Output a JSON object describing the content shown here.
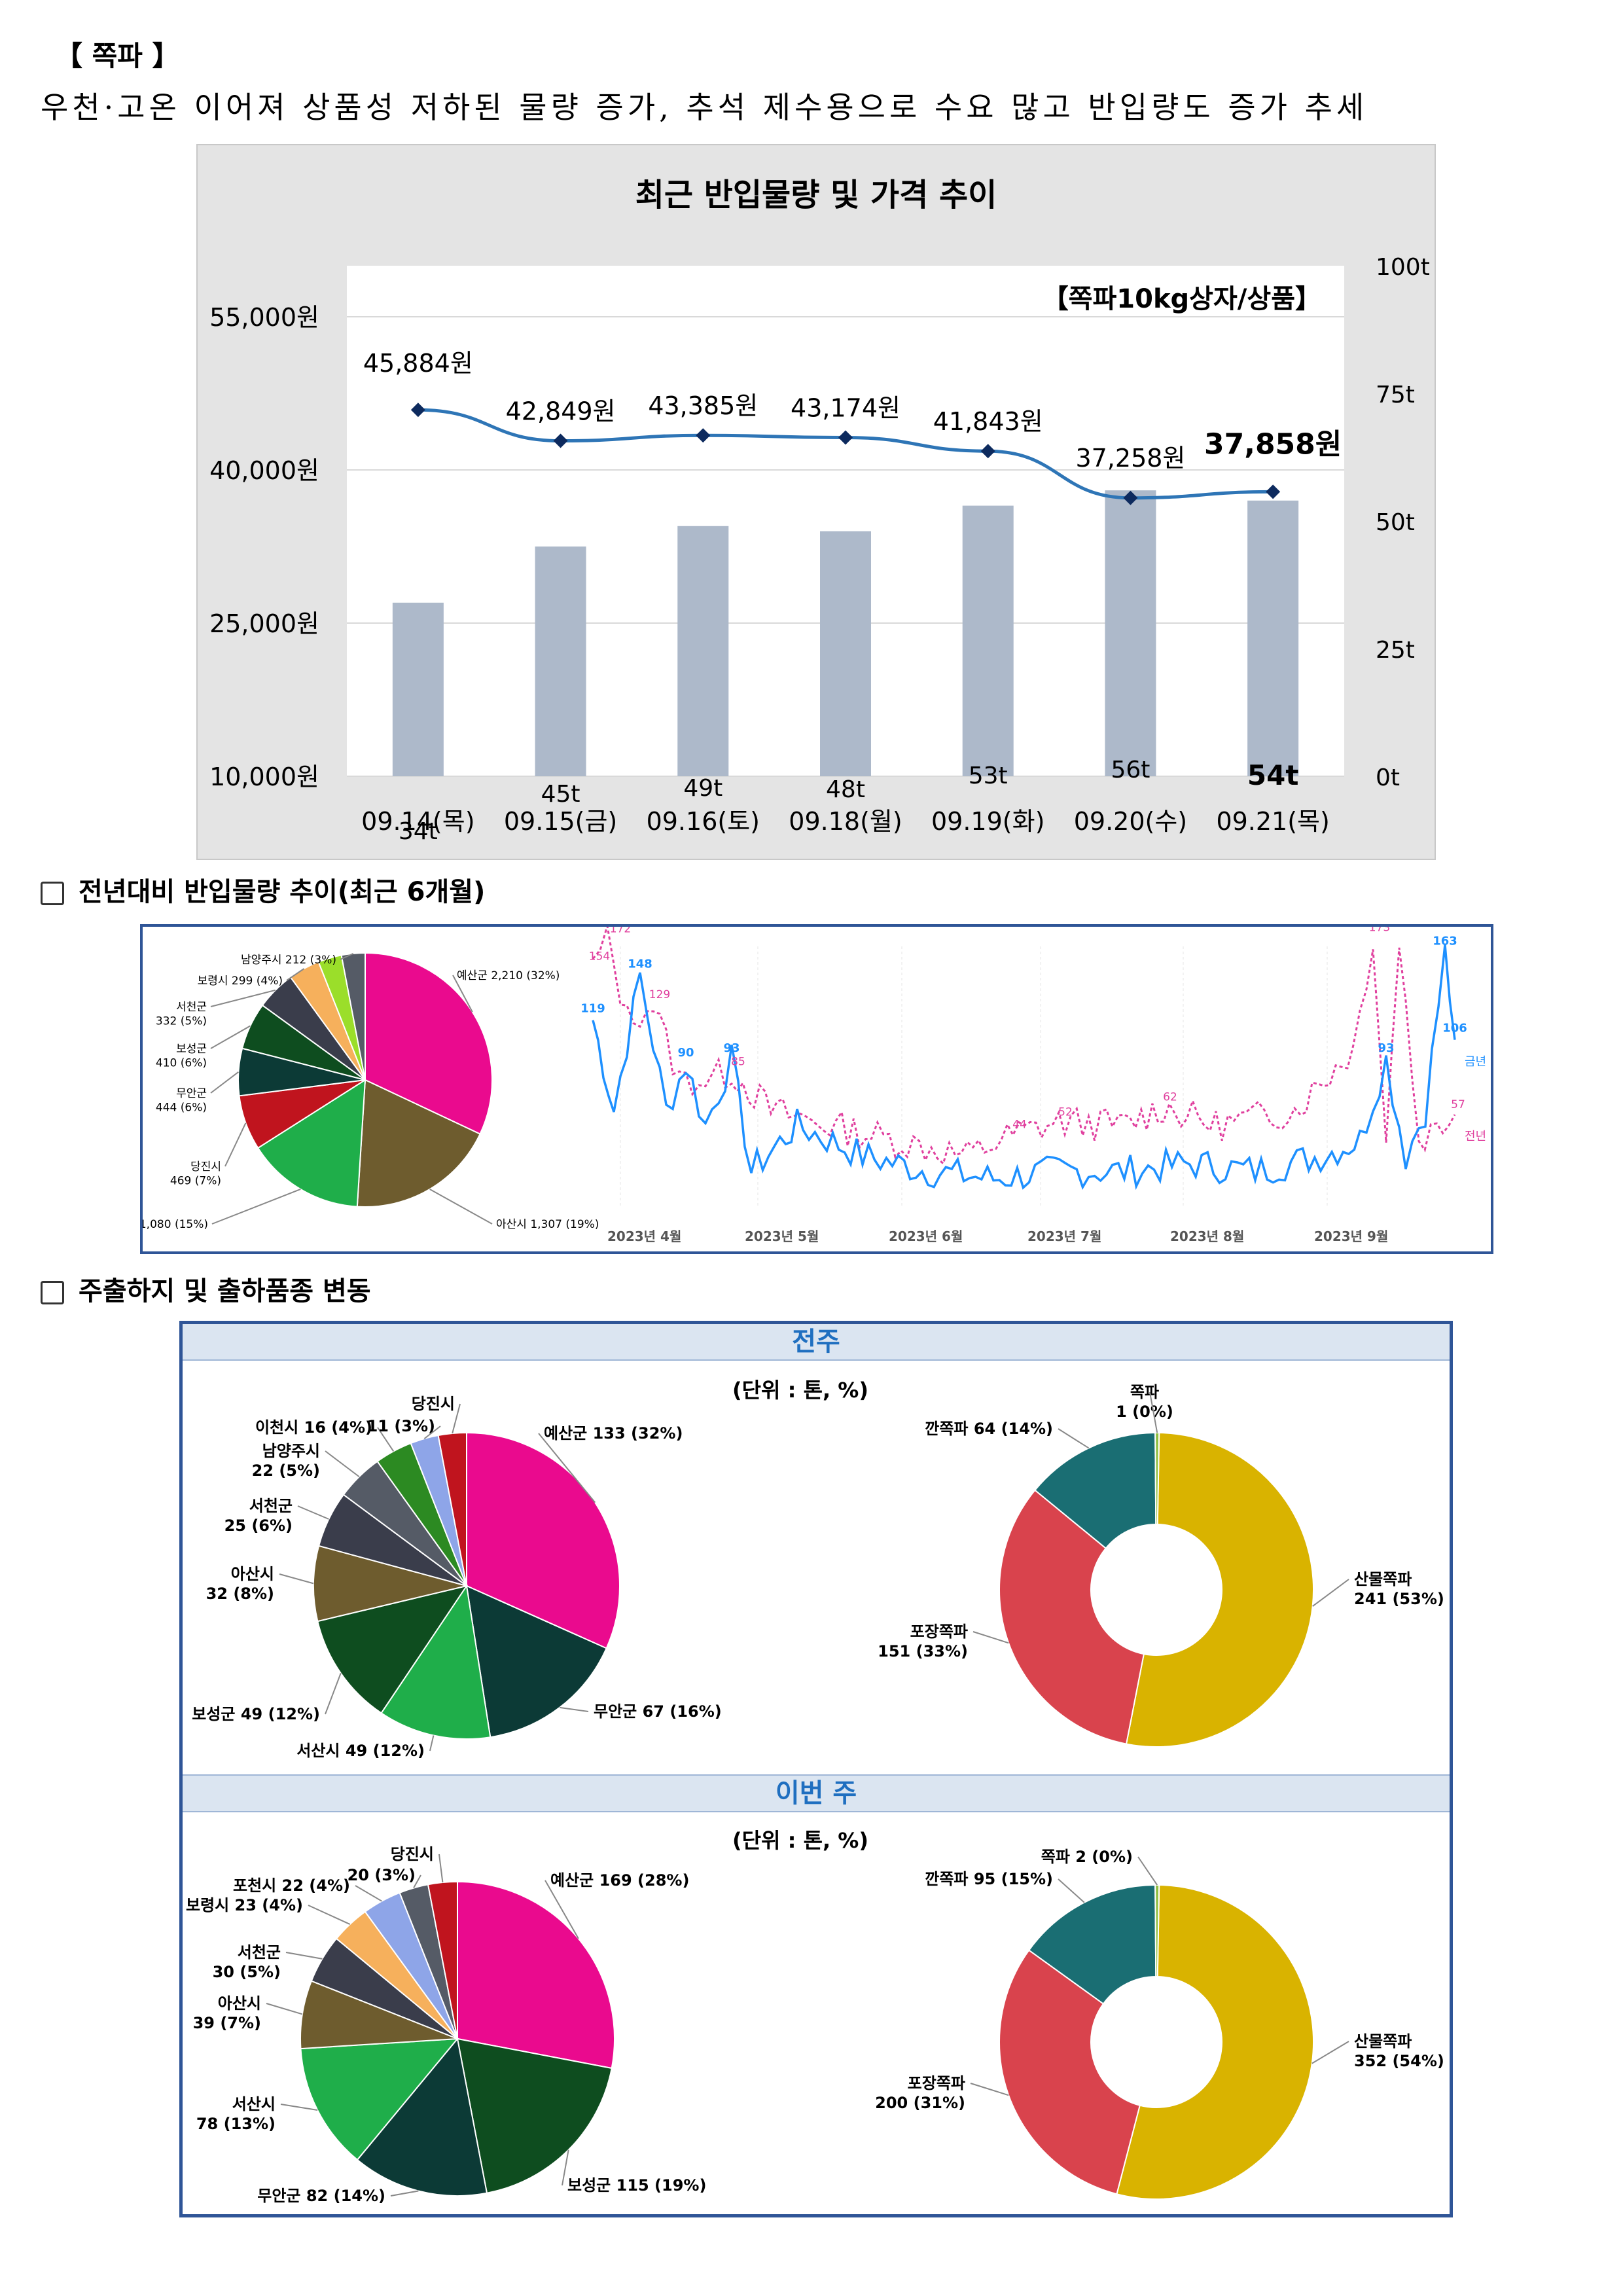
{
  "section_title": "【 쪽파 】",
  "summary": "우천·고온 이어져 상품성 저하된 물량 증가, 추석 제수용으로 수요 많고 반입량도 증가 추세",
  "chart_data": [
    {
      "type": "bar",
      "title": "최근 반입물량 및 가격 추이",
      "annotation": "【쪽파10kg상자/상품】",
      "categories": [
        "09.14(목)",
        "09.15(금)",
        "09.16(토)",
        "09.18(월)",
        "09.19(화)",
        "09.20(수)",
        "09.21(목)"
      ],
      "bar_series": {
        "values": [
          34,
          45,
          49,
          48,
          53,
          56,
          54
        ],
        "labels": [
          "34t",
          "45t",
          "49t",
          "48t",
          "53t",
          "56t",
          "54t"
        ],
        "color": "#adb9ca"
      },
      "line_series": {
        "values": [
          45884,
          42849,
          43385,
          43174,
          41843,
          37258,
          37858
        ],
        "labels": [
          "45,884원",
          "42,849원",
          "43,385원",
          "43,174원",
          "41,843원",
          "37,258원",
          "37,858원"
        ],
        "color": "#2e75b6"
      },
      "y_left": {
        "ticks": [
          "55,000원",
          "40,000원",
          "25,000원",
          "10,000원"
        ],
        "range": [
          10000,
          60000
        ]
      },
      "y_right": {
        "ticks": [
          "100t",
          "75t",
          "50t",
          "25t",
          "0t"
        ],
        "range": [
          0,
          100
        ]
      }
    },
    {
      "type": "pie",
      "slices": [
        {
          "label": "예산군 2,210 (32%)",
          "value": 32,
          "color": "#ea0a8e"
        },
        {
          "label": "아산시 1,307 (19%)",
          "value": 19,
          "color": "#6e5c2e"
        },
        {
          "label": "서산시 1,080 (15%)",
          "value": 15,
          "color": "#1fae4a"
        },
        {
          "label": "당진시 469 (7%)",
          "value": 7,
          "color": "#c0141e"
        },
        {
          "label": "무안군 444 (6%)",
          "value": 6,
          "color": "#0c3a36"
        },
        {
          "label": "보성군 410 (6%)",
          "value": 6,
          "color": "#0e4d1f"
        },
        {
          "label": "서천군 332 (5%)",
          "value": 5,
          "color": "#3a3d4b"
        },
        {
          "label": "보령시 299 (4%)",
          "value": 4,
          "color": "#f6b05c"
        },
        {
          "label": "",
          "value": 3,
          "color": "#9bde2a"
        },
        {
          "label": "남양주시 212 (3%)",
          "value": 3,
          "color": "#555b66"
        }
      ]
    },
    {
      "type": "line",
      "x_ticks": [
        "2023년 4월",
        "2023년 5월",
        "2023년 6월",
        "2023년 7월",
        "2023년 8월",
        "2023년 9월"
      ],
      "series": [
        {
          "name": "금년",
          "color": "#1e90ff",
          "labels": [
            "119",
            "148",
            "90",
            "93",
            "93",
            "163",
            "106"
          ]
        },
        {
          "name": "전년",
          "color": "#e0409e",
          "labels": [
            "154",
            "172",
            "129",
            "85",
            "44",
            "52",
            "62",
            "173",
            "57"
          ]
        }
      ]
    }
  ],
  "sec2_title": "전년대비 반입물량 추이(최근 6개월)",
  "sec3_title": "주출하지 및 출하품종 변동",
  "panel": {
    "prev_label": "전주",
    "this_label": "이번 주",
    "unit": "(단위 : 톤, %)"
  },
  "prev_week": {
    "regions": [
      {
        "label": "예산군 133 (32%)",
        "value": 32,
        "color": "#ea0a8e"
      },
      {
        "label": "무안군 67 (16%)",
        "value": 16,
        "color": "#0c3a36"
      },
      {
        "label": "서산시 49 (12%)",
        "value": 12,
        "color": "#1fae4a"
      },
      {
        "label": "보성군 49 (12%)",
        "value": 12,
        "color": "#0e4d1f"
      },
      {
        "label": "아산시 32 (8%)",
        "value": 8,
        "color": "#6e5c2e"
      },
      {
        "label": "서천군 25 (6%)",
        "value": 6,
        "color": "#3a3d4b"
      },
      {
        "label": "남양주시 22 (5%)",
        "value": 5,
        "color": "#555b66"
      },
      {
        "label": "이천시 16 (4%)",
        "value": 4,
        "color": "#2c8a22"
      },
      {
        "label": "11 (3%)",
        "value": 3,
        "color": "#8ea5e8"
      },
      {
        "label": "당진시",
        "value": 3,
        "color": "#c0141e"
      }
    ],
    "varieties": [
      {
        "label": "산물쪽파 241 (53%)",
        "value": 53,
        "color": "#d9b300"
      },
      {
        "label": "포장쪽파 151 (33%)",
        "value": 33,
        "color": "#d9434d"
      },
      {
        "label": "깐쪽파 64 (14%)",
        "value": 14,
        "color": "#1a6e73"
      },
      {
        "label": "쪽파 1 (0%)",
        "value": 0.4,
        "color": "#8fbf40"
      }
    ]
  },
  "this_week": {
    "regions": [
      {
        "label": "예산군 169 (28%)",
        "value": 28,
        "color": "#ea0a8e"
      },
      {
        "label": "보성군 115 (19%)",
        "value": 19,
        "color": "#0e4d1f"
      },
      {
        "label": "무안군 82 (14%)",
        "value": 14,
        "color": "#0c3a36"
      },
      {
        "label": "서산시 78 (13%)",
        "value": 13,
        "color": "#1fae4a"
      },
      {
        "label": "아산시 39 (7%)",
        "value": 7,
        "color": "#6e5c2e"
      },
      {
        "label": "서천군 30 (5%)",
        "value": 5,
        "color": "#3a3d4b"
      },
      {
        "label": "보령시 23 (4%)",
        "value": 4,
        "color": "#f6b05c"
      },
      {
        "label": "포천시 22 (4%)",
        "value": 4,
        "color": "#8ea5e8"
      },
      {
        "label": "20 (3%)",
        "value": 3,
        "color": "#555b66"
      },
      {
        "label": "당진시",
        "value": 3,
        "color": "#c0141e"
      }
    ],
    "varieties": [
      {
        "label": "산물쪽파 352 (54%)",
        "value": 54,
        "color": "#d9b300"
      },
      {
        "label": "포장쪽파 200 (31%)",
        "value": 31,
        "color": "#d9434d"
      },
      {
        "label": "깐쪽파 95 (15%)",
        "value": 15,
        "color": "#1a6e73"
      },
      {
        "label": "쪽파 2 (0%)",
        "value": 0.4,
        "color": "#8fbf40"
      }
    ]
  }
}
